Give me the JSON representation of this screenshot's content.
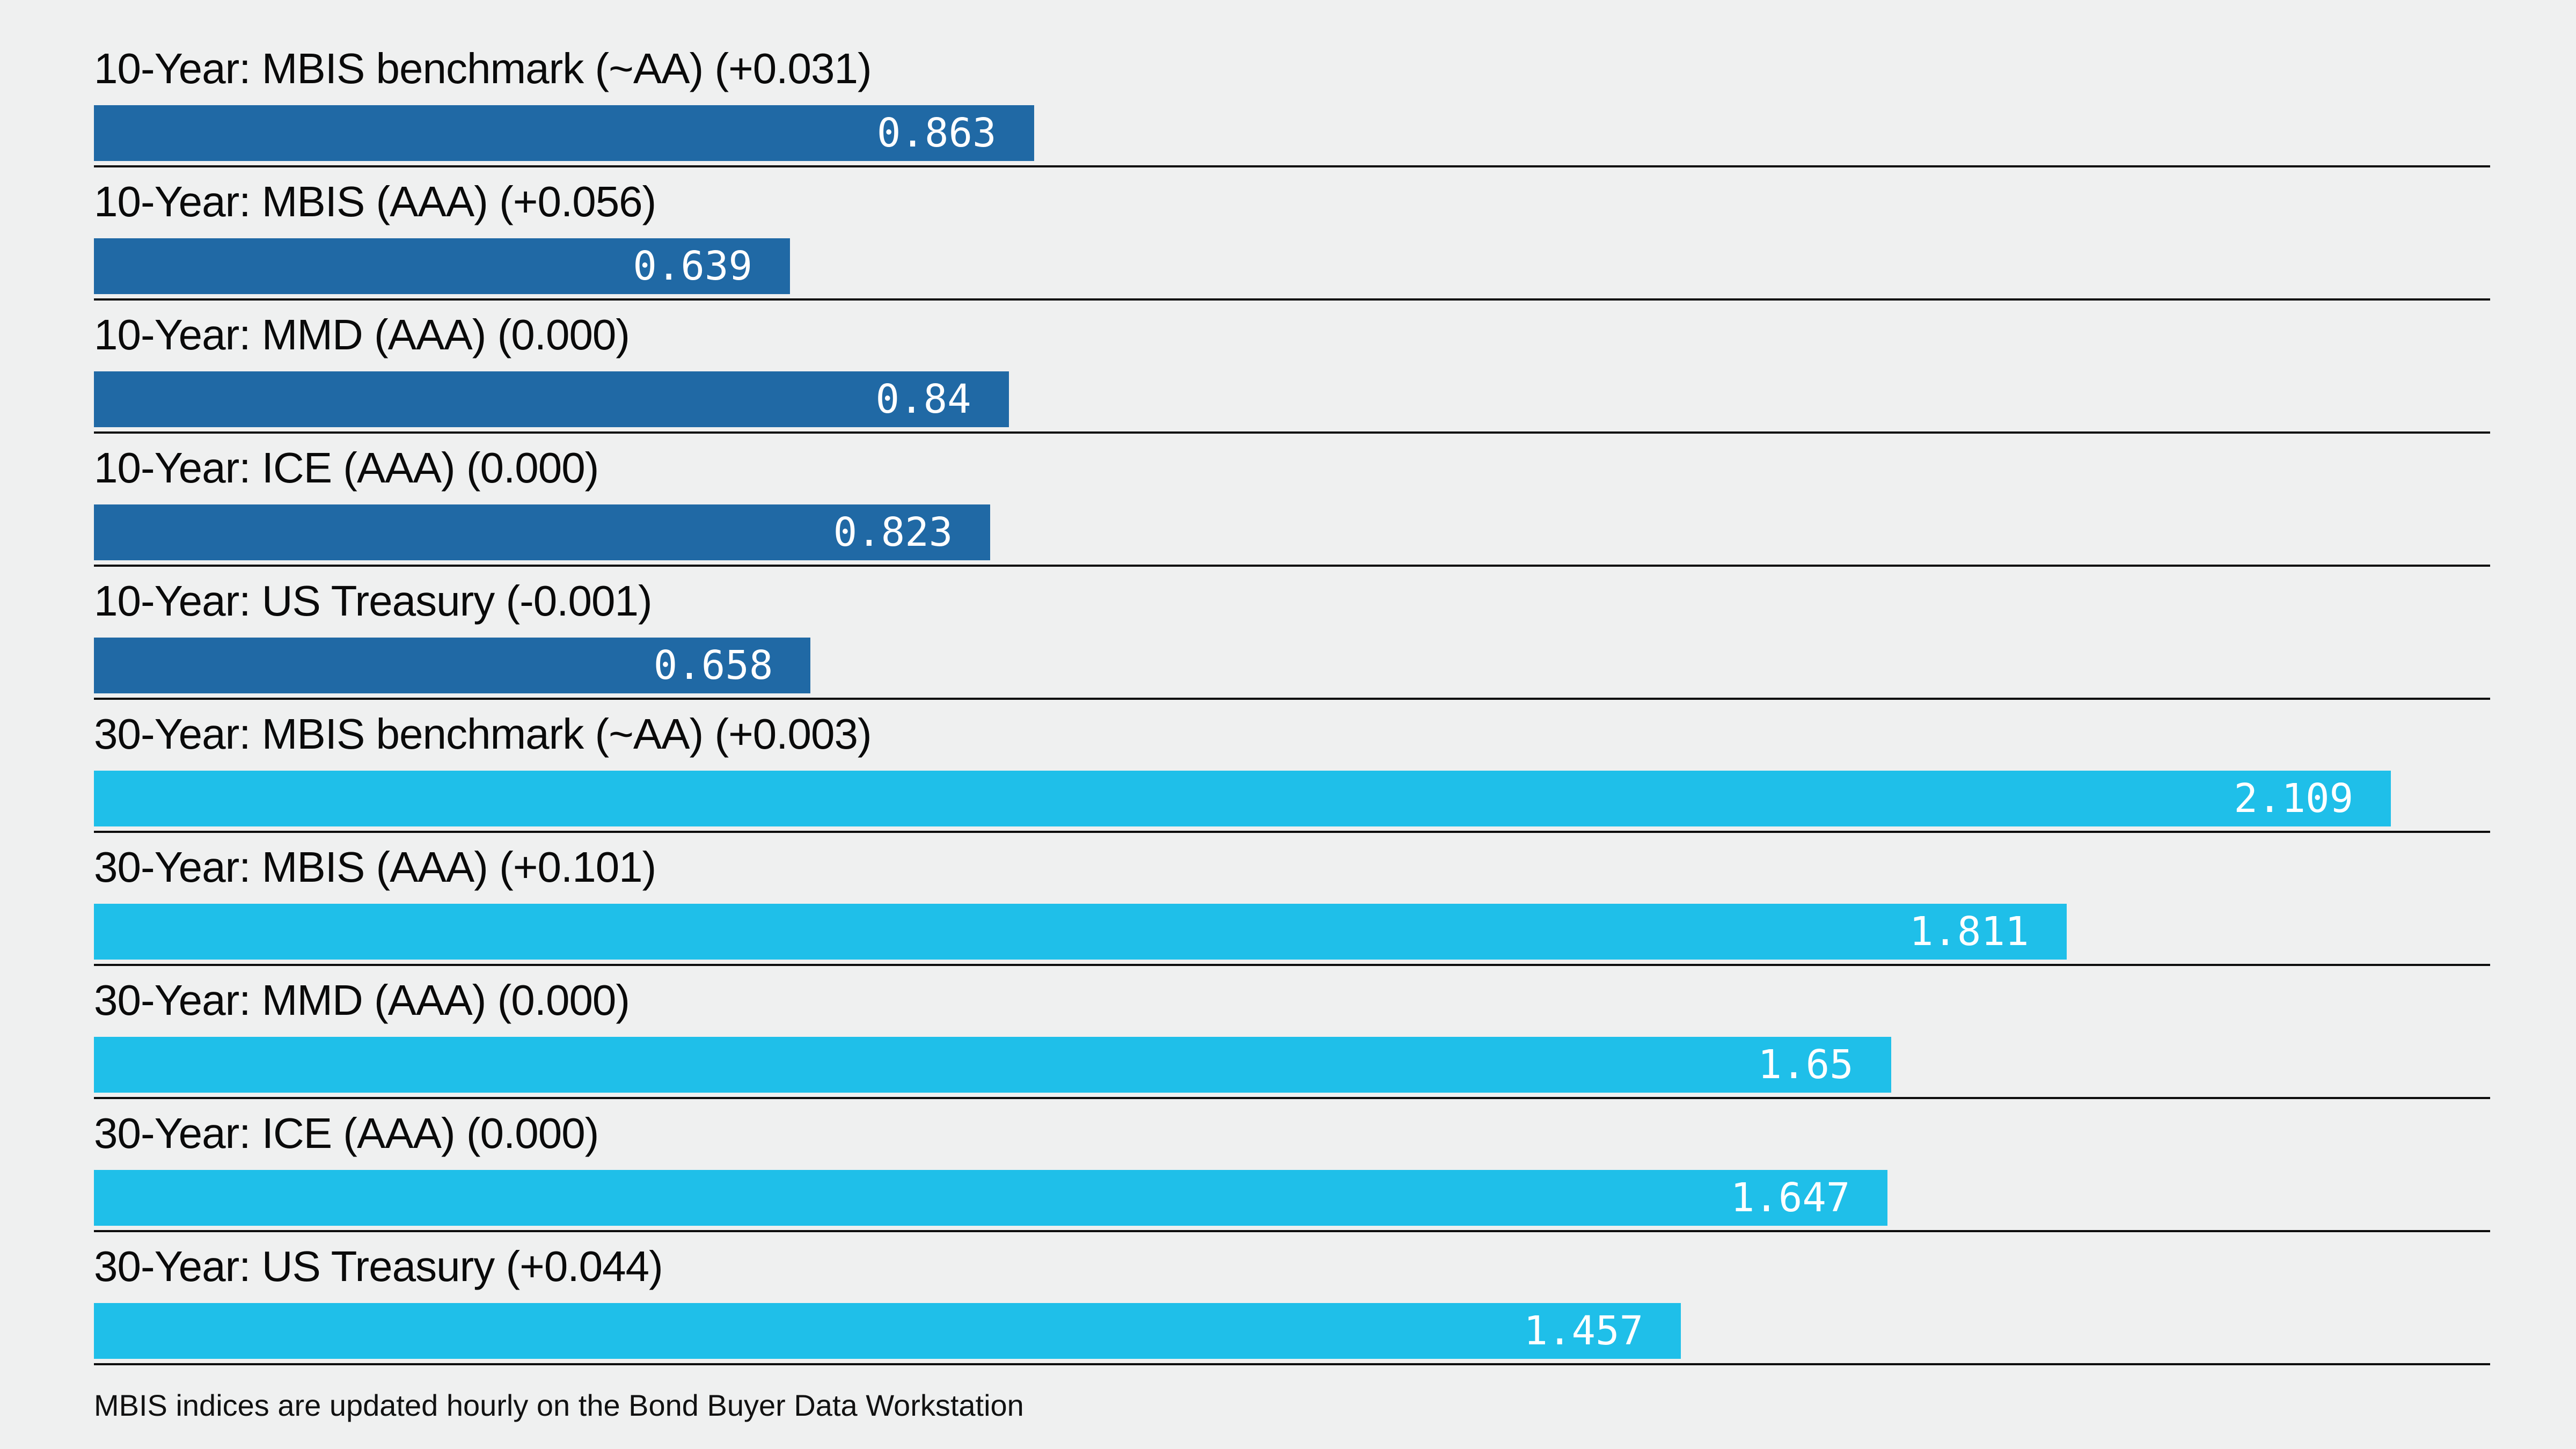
{
  "chart_data": {
    "type": "bar",
    "orientation": "horizontal",
    "title": "",
    "xlabel": "",
    "ylabel": "",
    "xlim": [
      0,
      2.2
    ],
    "grid": false,
    "legend": "none",
    "series_colors": {
      "10-Year": "#2069a5",
      "30-Year": "#1fbfe9"
    },
    "bars": [
      {
        "label": "10-Year: MBIS benchmark (~AA) (+0.031)",
        "value": 0.863,
        "value_label": "0.863",
        "group": "10-Year"
      },
      {
        "label": "10-Year: MBIS (AAA) (+0.056)",
        "value": 0.639,
        "value_label": "0.639",
        "group": "10-Year"
      },
      {
        "label": "10-Year: MMD (AAA) (0.000)",
        "value": 0.84,
        "value_label": "0.84",
        "group": "10-Year"
      },
      {
        "label": "10-Year: ICE (AAA) (0.000)",
        "value": 0.823,
        "value_label": "0.823",
        "group": "10-Year"
      },
      {
        "label": "10-Year: US Treasury (-0.001)",
        "value": 0.658,
        "value_label": "0.658",
        "group": "10-Year"
      },
      {
        "label": "30-Year: MBIS benchmark (~AA) (+0.003)",
        "value": 2.109,
        "value_label": "2.109",
        "group": "30-Year"
      },
      {
        "label": "30-Year: MBIS (AAA) (+0.101)",
        "value": 1.811,
        "value_label": "1.811",
        "group": "30-Year"
      },
      {
        "label": "30-Year: MMD (AAA) (0.000)",
        "value": 1.65,
        "value_label": "1.65",
        "group": "30-Year"
      },
      {
        "label": "30-Year: ICE (AAA) (0.000)",
        "value": 1.647,
        "value_label": "1.647",
        "group": "30-Year"
      },
      {
        "label": "30-Year: US Treasury (+0.044)",
        "value": 1.457,
        "value_label": "1.457",
        "group": "30-Year"
      }
    ],
    "footnote": "MBIS indices are updated hourly on the Bond Buyer Data Workstation"
  },
  "colors": {
    "background": "#eff0f0",
    "separator": "#0d0d0d",
    "label_text": "#0a0a0a",
    "value_text": "#ffffff"
  }
}
